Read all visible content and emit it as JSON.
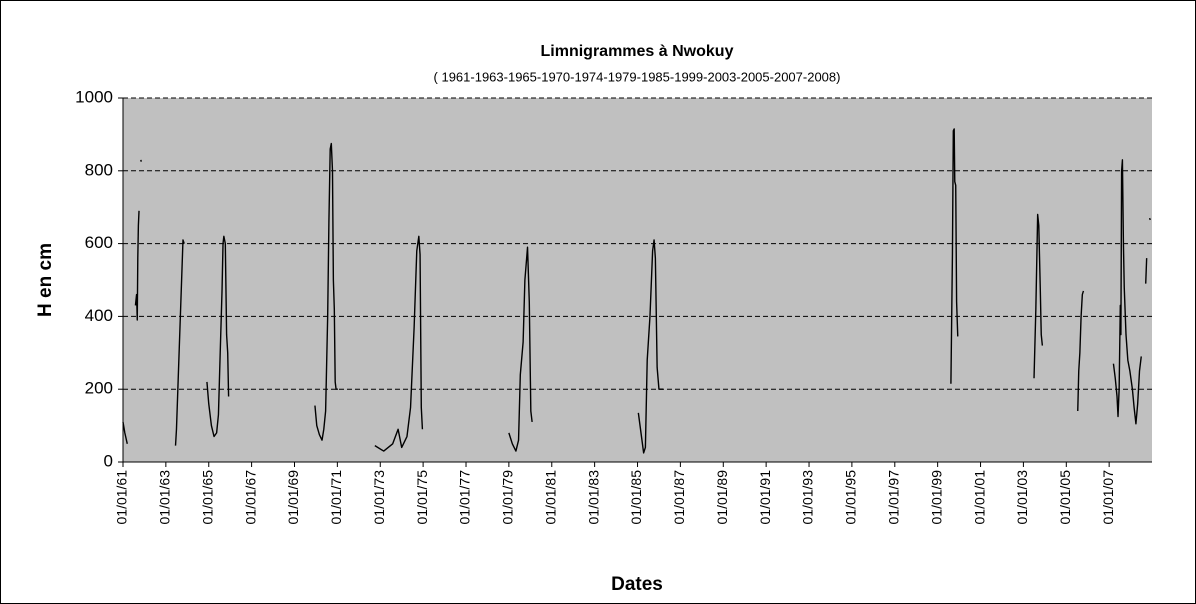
{
  "chart_data": {
    "type": "line",
    "title": "Limnigrammes à Nwokuy",
    "subtitle": "( 1961-1963-1965-1970-1974-1979-1985-1999-2003-2005-2007-2008)",
    "x_label": "Dates",
    "y_label": "H en cm",
    "color": "#000000",
    "plot_background": "#c0c0c0",
    "grid": true,
    "xlim": [
      "1961-01-01",
      "2008-12-31"
    ],
    "ylim": [
      0,
      1000
    ],
    "yticks": [
      0,
      200,
      400,
      600,
      800,
      1000
    ],
    "xticks": [
      {
        "value": "1961-01-01",
        "label": "01/01/61"
      },
      {
        "value": "1963-01-01",
        "label": "01/01/63"
      },
      {
        "value": "1965-01-01",
        "label": "01/01/65"
      },
      {
        "value": "1967-01-01",
        "label": "01/01/67"
      },
      {
        "value": "1969-01-01",
        "label": "01/01/69"
      },
      {
        "value": "1971-01-01",
        "label": "01/01/71"
      },
      {
        "value": "1973-01-01",
        "label": "01/01/73"
      },
      {
        "value": "1975-01-01",
        "label": "01/01/75"
      },
      {
        "value": "1977-01-01",
        "label": "01/01/77"
      },
      {
        "value": "1979-01-01",
        "label": "01/01/79"
      },
      {
        "value": "1981-01-01",
        "label": "01/01/81"
      },
      {
        "value": "1983-01-01",
        "label": "01/01/83"
      },
      {
        "value": "1985-01-01",
        "label": "01/01/85"
      },
      {
        "value": "1987-01-01",
        "label": "01/01/87"
      },
      {
        "value": "1989-01-01",
        "label": "01/01/89"
      },
      {
        "value": "1991-01-01",
        "label": "01/01/91"
      },
      {
        "value": "1993-01-01",
        "label": "01/01/93"
      },
      {
        "value": "1995-01-01",
        "label": "01/01/95"
      },
      {
        "value": "1997-01-01",
        "label": "01/01/97"
      },
      {
        "value": "1999-01-01",
        "label": "01/01/99"
      },
      {
        "value": "2001-01-01",
        "label": "01/01/01"
      },
      {
        "value": "2003-01-01",
        "label": "01/01/03"
      },
      {
        "value": "2005-01-01",
        "label": "01/01/05"
      },
      {
        "value": "2007-01-01",
        "label": "01/01/07"
      }
    ],
    "x": [
      "1961-01-01",
      "1961-02-01",
      "1961-03-15",
      "1961-05-01",
      "1961-08-01",
      "1961-08-20",
      "1961-09-01",
      "1961-09-10",
      "1961-09-20",
      "1961-10-01",
      "1961-10-15",
      "1961-11-01",
      "1961-11-08",
      "1962-06-01",
      "1963-06-15",
      "1963-07-01",
      "1963-10-20",
      "1963-11-10",
      "1964-06-01",
      "1964-12-01",
      "1965-01-01",
      "1965-02-15",
      "1965-04-01",
      "1965-05-15",
      "1965-06-15",
      "1965-07-15",
      "1965-08-15",
      "1965-09-01",
      "1965-09-15",
      "1965-10-10",
      "1965-11-01",
      "1965-11-20",
      "1965-12-05",
      "1967-06-01",
      "1969-12-15",
      "1970-01-15",
      "1970-03-01",
      "1970-04-15",
      "1970-05-15",
      "1970-06-15",
      "1970-07-20",
      "1970-08-10",
      "1970-09-01",
      "1970-09-20",
      "1970-10-10",
      "1970-10-25",
      "1970-11-10",
      "1970-11-25",
      "1970-12-10",
      "1971-01-10",
      "1972-01-01",
      "1972-10-01",
      "1973-03-01",
      "1973-08-01",
      "1973-11-01",
      "1974-01-01",
      "1974-04-01",
      "1974-06-01",
      "1974-08-01",
      "1974-09-15",
      "1974-10-20",
      "1974-11-10",
      "1974-12-01",
      "1974-12-20",
      "1977-01-01",
      "1979-01-01",
      "1979-03-01",
      "1979-05-01",
      "1979-06-15",
      "1979-07-15",
      "1979-09-01",
      "1979-10-01",
      "1979-11-15",
      "1979-12-15",
      "1980-01-10",
      "1980-02-01",
      "1982-06-01",
      "1985-01-15",
      "1985-03-01",
      "1985-04-15",
      "1985-05-15",
      "1985-06-15",
      "1985-08-01",
      "1985-09-15",
      "1985-10-10",
      "1985-11-01",
      "1985-12-01",
      "1986-01-01",
      "1986-03-15",
      "1992-06-01",
      "1999-08-15",
      "1999-09-10",
      "1999-09-25",
      "1999-10-10",
      "1999-10-20",
      "1999-11-05",
      "1999-11-20",
      "1999-12-10",
      "2001-06-01",
      "2003-07-01",
      "2003-08-01",
      "2003-09-01",
      "2003-09-20",
      "2003-10-15",
      "2003-11-01",
      "2003-11-20",
      "2004-09-01",
      "2005-07-15",
      "2005-08-01",
      "2005-08-20",
      "2005-09-10",
      "2005-10-01",
      "2005-10-20",
      "2006-09-01",
      "2007-03-15",
      "2007-04-15",
      "2007-05-15",
      "2007-06-01",
      "2007-06-20",
      "2007-07-10",
      "2007-07-20",
      "2007-08-01",
      "2007-08-15",
      "2007-09-01",
      "2007-09-15",
      "2007-10-15",
      "2007-11-15",
      "2007-12-20",
      "2008-02-01",
      "2008-03-01",
      "2008-04-01",
      "2008-05-01",
      "2008-06-01",
      "2008-07-01",
      "2008-08-15",
      "2008-09-15",
      "2008-10-01",
      "2008-11-01",
      "2008-11-20",
      "2008-12-01"
    ],
    "values": [
      110,
      80,
      50,
      null,
      430,
      460,
      390,
      560,
      650,
      690,
      null,
      830,
      825,
      null,
      45,
      90,
      610,
      600,
      null,
      220,
      160,
      100,
      70,
      80,
      130,
      300,
      470,
      600,
      620,
      600,
      350,
      300,
      180,
      null,
      155,
      100,
      75,
      60,
      90,
      140,
      400,
      660,
      860,
      875,
      800,
      500,
      420,
      220,
      200,
      200,
      null,
      45,
      30,
      50,
      90,
      40,
      70,
      150,
      370,
      580,
      620,
      570,
      150,
      90,
      null,
      80,
      50,
      30,
      60,
      240,
      330,
      500,
      590,
      440,
      140,
      110,
      null,
      135,
      80,
      25,
      40,
      280,
      400,
      580,
      610,
      560,
      260,
      200,
      200,
      null,
      215,
      570,
      910,
      915,
      770,
      760,
      440,
      345,
      null,
      230,
      420,
      680,
      650,
      480,
      350,
      320,
      null,
      140,
      250,
      300,
      400,
      460,
      470,
      null,
      270,
      230,
      180,
      125,
      200,
      430,
      350,
      800,
      830,
      600,
      480,
      350,
      280,
      250,
      200,
      150,
      105,
      160,
      250,
      290,
      null,
      490,
      560,
      null,
      670,
      665
    ]
  }
}
